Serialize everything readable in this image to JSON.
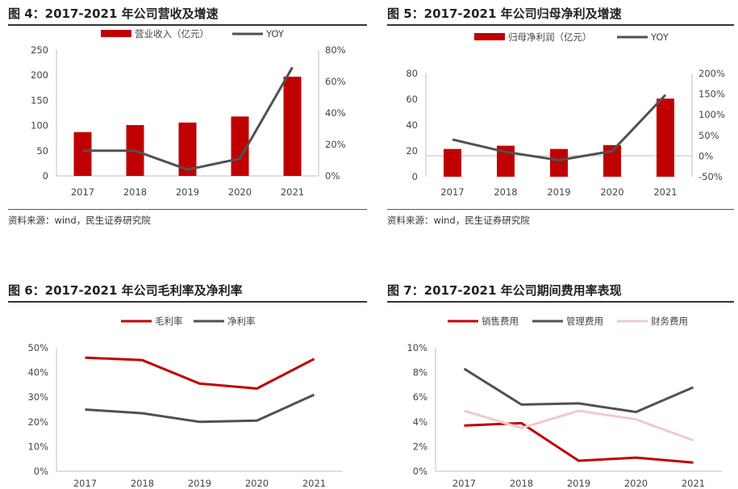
{
  "colors": {
    "red": "#c00000",
    "dark": "#515151",
    "pink": "#f2c9c9",
    "axis": "#bfbfbf"
  },
  "fig4": {
    "title": "图 4：2017-2021 年公司营收及增速",
    "source": "资料来源：wind，民生证券研究院",
    "chart_data": {
      "type": "bar",
      "categories": [
        "2017",
        "2018",
        "2019",
        "2020",
        "2021"
      ],
      "series": [
        {
          "name": "营业收入（亿元）",
          "type": "bar",
          "axis": "left",
          "values": [
            87,
            101,
            106,
            118,
            197
          ]
        },
        {
          "name": "YOY",
          "type": "line",
          "axis": "right",
          "values": [
            16,
            16,
            4,
            11,
            69
          ]
        }
      ],
      "ylim_left": [
        0,
        250
      ],
      "yticks_left": [
        "0",
        "50",
        "100",
        "150",
        "200",
        "250"
      ],
      "ylim_right": [
        0,
        80
      ],
      "yticks_right": [
        "0%",
        "20%",
        "40%",
        "60%",
        "80%"
      ],
      "legend": "top"
    }
  },
  "fig5": {
    "title": "图 5：2017-2021 年公司归母净利及增速",
    "source": "资料来源：wind，民生证券研究院",
    "chart_data": {
      "type": "bar",
      "categories": [
        "2017",
        "2018",
        "2019",
        "2020",
        "2021"
      ],
      "series": [
        {
          "name": "归母净利润（亿元）",
          "type": "bar",
          "axis": "left",
          "values": [
            21.5,
            24,
            21.5,
            24.5,
            60.5
          ]
        },
        {
          "name": "YOY",
          "type": "line",
          "axis": "right",
          "values": [
            40,
            10,
            -10,
            12,
            148
          ]
        }
      ],
      "ylim_left": [
        0,
        80
      ],
      "yticks_left": [
        "0",
        "20",
        "40",
        "60",
        "80"
      ],
      "ylim_right": [
        -50,
        200
      ],
      "yticks_right": [
        "-50%",
        "0%",
        "50%",
        "100%",
        "150%",
        "200%"
      ],
      "legend": "top"
    }
  },
  "fig6": {
    "title": "图 6：2017-2021 年公司毛利率及净利率",
    "chart_data": {
      "type": "line",
      "categories": [
        "2017",
        "2018",
        "2019",
        "2020",
        "2021"
      ],
      "series": [
        {
          "name": "毛利率",
          "values": [
            46,
            45,
            35.5,
            33.5,
            45.5
          ],
          "color": "#c00000"
        },
        {
          "name": "净利率",
          "values": [
            25,
            23.5,
            20,
            20.5,
            31
          ],
          "color": "#515151"
        }
      ],
      "ylim": [
        0,
        50
      ],
      "yticks": [
        "0%",
        "10%",
        "20%",
        "30%",
        "40%",
        "50%"
      ],
      "legend": "top"
    }
  },
  "fig7": {
    "title": "图 7：2017-2021 年公司期间费用率表现",
    "chart_data": {
      "type": "line",
      "categories": [
        "2017",
        "2018",
        "2019",
        "2020",
        "2021"
      ],
      "series": [
        {
          "name": "销售费用",
          "values": [
            3.7,
            3.9,
            0.85,
            1.1,
            0.7
          ],
          "color": "#c00000"
        },
        {
          "name": "管理费用",
          "values": [
            8.3,
            5.4,
            5.5,
            4.8,
            6.8
          ],
          "color": "#515151"
        },
        {
          "name": "财务费用",
          "values": [
            4.9,
            3.5,
            4.9,
            4.2,
            2.5
          ],
          "color": "#f2c9c9"
        }
      ],
      "ylim": [
        0,
        10
      ],
      "yticks": [
        "0%",
        "2%",
        "4%",
        "6%",
        "8%",
        "10%"
      ],
      "legend": "top"
    }
  }
}
